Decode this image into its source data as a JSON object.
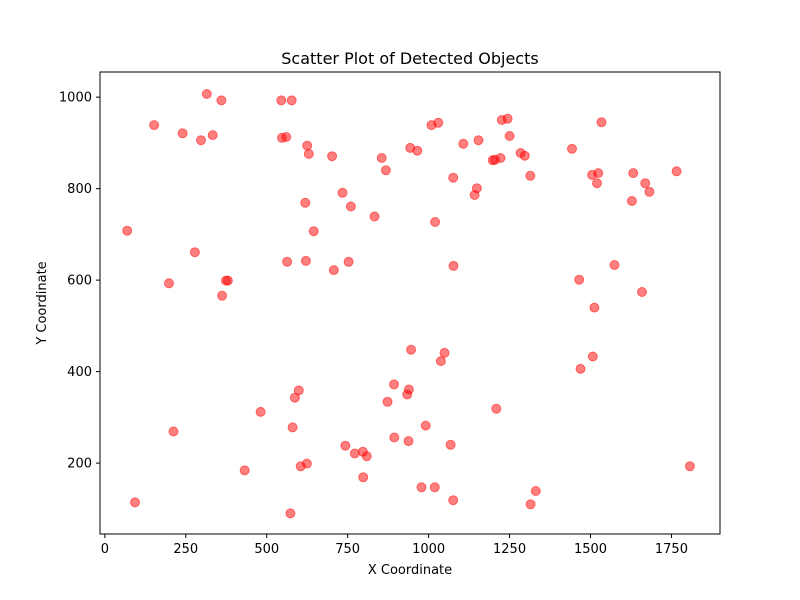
{
  "chart_data": {
    "type": "scatter",
    "title": "Scatter Plot of Detected Objects",
    "xlabel": "X Coordinate",
    "ylabel": "Y Coordinate",
    "xlim": [
      -15,
      1900
    ],
    "ylim": [
      45,
      1055
    ],
    "xticks": [
      0,
      250,
      500,
      750,
      1000,
      1250,
      1500,
      1750
    ],
    "yticks": [
      200,
      400,
      600,
      800,
      1000
    ],
    "grid": false,
    "marker_color": "#ff0000",
    "marker_alpha": 0.5,
    "points": [
      {
        "x": 315,
        "y": 1007
      },
      {
        "x": 360,
        "y": 993
      },
      {
        "x": 545,
        "y": 993
      },
      {
        "x": 577,
        "y": 993
      },
      {
        "x": 152,
        "y": 939
      },
      {
        "x": 240,
        "y": 921
      },
      {
        "x": 333,
        "y": 917
      },
      {
        "x": 297,
        "y": 906
      },
      {
        "x": 547,
        "y": 911
      },
      {
        "x": 560,
        "y": 913
      },
      {
        "x": 625,
        "y": 894
      },
      {
        "x": 630,
        "y": 876
      },
      {
        "x": 702,
        "y": 871
      },
      {
        "x": 855,
        "y": 867
      },
      {
        "x": 868,
        "y": 840
      },
      {
        "x": 943,
        "y": 889
      },
      {
        "x": 965,
        "y": 883
      },
      {
        "x": 1009,
        "y": 939
      },
      {
        "x": 1030,
        "y": 944
      },
      {
        "x": 1107,
        "y": 898
      },
      {
        "x": 1154,
        "y": 906
      },
      {
        "x": 1226,
        "y": 950
      },
      {
        "x": 1244,
        "y": 953
      },
      {
        "x": 1250,
        "y": 915
      },
      {
        "x": 1076,
        "y": 824
      },
      {
        "x": 1149,
        "y": 801
      },
      {
        "x": 1142,
        "y": 786
      },
      {
        "x": 1198,
        "y": 862
      },
      {
        "x": 1205,
        "y": 863
      },
      {
        "x": 1222,
        "y": 867
      },
      {
        "x": 1284,
        "y": 878
      },
      {
        "x": 1297,
        "y": 872
      },
      {
        "x": 1314,
        "y": 828
      },
      {
        "x": 1443,
        "y": 887
      },
      {
        "x": 1534,
        "y": 945
      },
      {
        "x": 1505,
        "y": 830
      },
      {
        "x": 1524,
        "y": 834
      },
      {
        "x": 1520,
        "y": 812
      },
      {
        "x": 1632,
        "y": 834
      },
      {
        "x": 1669,
        "y": 812
      },
      {
        "x": 1682,
        "y": 793
      },
      {
        "x": 1766,
        "y": 838
      },
      {
        "x": 1628,
        "y": 773
      },
      {
        "x": 734,
        "y": 791
      },
      {
        "x": 619,
        "y": 769
      },
      {
        "x": 760,
        "y": 761
      },
      {
        "x": 833,
        "y": 739
      },
      {
        "x": 1020,
        "y": 727
      },
      {
        "x": 645,
        "y": 707
      },
      {
        "x": 69,
        "y": 708
      },
      {
        "x": 278,
        "y": 661
      },
      {
        "x": 563,
        "y": 640
      },
      {
        "x": 621,
        "y": 642
      },
      {
        "x": 753,
        "y": 640
      },
      {
        "x": 707,
        "y": 622
      },
      {
        "x": 1077,
        "y": 631
      },
      {
        "x": 198,
        "y": 593
      },
      {
        "x": 374,
        "y": 599
      },
      {
        "x": 380,
        "y": 599
      },
      {
        "x": 362,
        "y": 566
      },
      {
        "x": 1465,
        "y": 601
      },
      {
        "x": 1574,
        "y": 633
      },
      {
        "x": 1659,
        "y": 574
      },
      {
        "x": 1512,
        "y": 540
      },
      {
        "x": 946,
        "y": 448
      },
      {
        "x": 1049,
        "y": 441
      },
      {
        "x": 1038,
        "y": 423
      },
      {
        "x": 1507,
        "y": 433
      },
      {
        "x": 1469,
        "y": 406
      },
      {
        "x": 893,
        "y": 372
      },
      {
        "x": 939,
        "y": 361
      },
      {
        "x": 934,
        "y": 350
      },
      {
        "x": 599,
        "y": 359
      },
      {
        "x": 587,
        "y": 343
      },
      {
        "x": 873,
        "y": 334
      },
      {
        "x": 481,
        "y": 312
      },
      {
        "x": 1209,
        "y": 319
      },
      {
        "x": 580,
        "y": 278
      },
      {
        "x": 991,
        "y": 282
      },
      {
        "x": 894,
        "y": 256
      },
      {
        "x": 938,
        "y": 248
      },
      {
        "x": 1068,
        "y": 240
      },
      {
        "x": 212,
        "y": 269
      },
      {
        "x": 743,
        "y": 238
      },
      {
        "x": 772,
        "y": 221
      },
      {
        "x": 797,
        "y": 225
      },
      {
        "x": 809,
        "y": 215
      },
      {
        "x": 624,
        "y": 199
      },
      {
        "x": 605,
        "y": 193
      },
      {
        "x": 432,
        "y": 184
      },
      {
        "x": 798,
        "y": 169
      },
      {
        "x": 978,
        "y": 147
      },
      {
        "x": 1019,
        "y": 147
      },
      {
        "x": 1076,
        "y": 119
      },
      {
        "x": 1331,
        "y": 139
      },
      {
        "x": 1315,
        "y": 110
      },
      {
        "x": 1807,
        "y": 193
      },
      {
        "x": 93,
        "y": 114
      },
      {
        "x": 573,
        "y": 90
      }
    ]
  }
}
